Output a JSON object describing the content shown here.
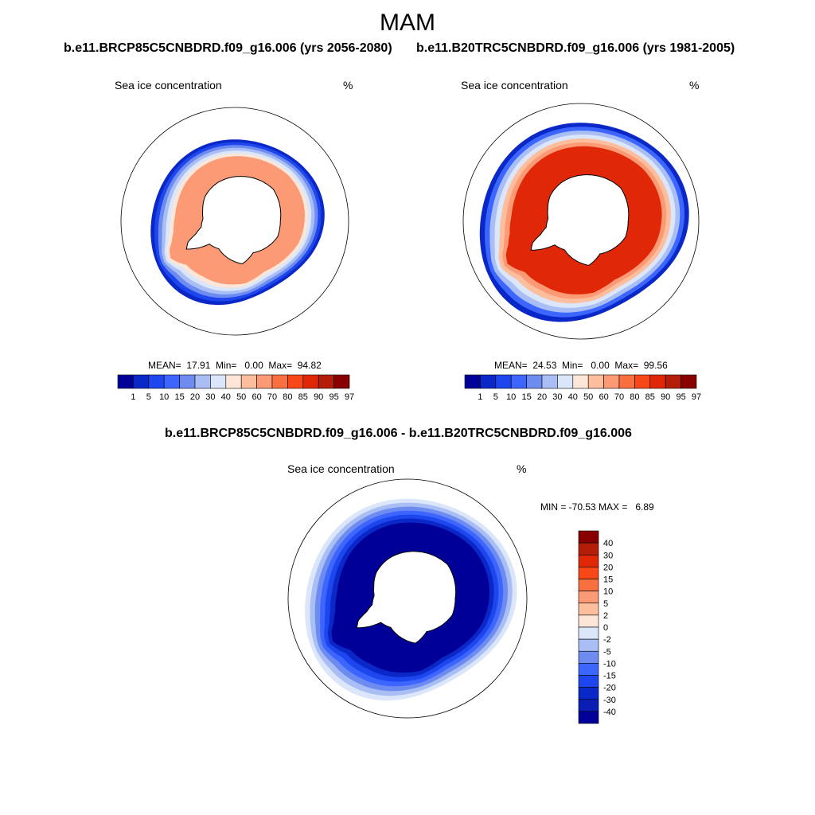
{
  "figure_title": "MAM",
  "panels": [
    {
      "run_title": "b.e11.BRCP85C5CNBDRD.f09_g16.006 (yrs 2056-2080)",
      "left_label": "Sea ice concentration",
      "right_label": "%",
      "stats": "MEAN=  17.91  Min=   0.00  Max=  94.82"
    },
    {
      "run_title": "b.e11.B20TRC5CNBDRD.f09_g16.006 (yrs 1981-2005)",
      "left_label": "Sea ice concentration",
      "right_label": "%",
      "stats": "MEAN=  24.53  Min=   0.00  Max=  99.56"
    }
  ],
  "diff_panel": {
    "title": "b.e11.BRCP85C5CNBDRD.f09_g16.006 - b.e11.B20TRC5CNBDRD.f09_g16.006",
    "left_label": "Sea ice concentration",
    "right_label": "%",
    "minmax": "MIN = -70.53 MAX =   6.89"
  },
  "colors": {
    "conc": [
      "#000099",
      "#0a28c8",
      "#1e46ee",
      "#3c66ff",
      "#6e8cf0",
      "#a8bef5",
      "#dbe6fa",
      "#fde6d8",
      "#fcbe9c",
      "#fc9a76",
      "#f87040",
      "#f84818",
      "#e02808",
      "#b41e08",
      "#880000"
    ],
    "diff": [
      "#880000",
      "#b41e08",
      "#e02808",
      "#f84818",
      "#f87040",
      "#fc9a76",
      "#fcbe9c",
      "#fde6d8",
      "#dbe6fa",
      "#a8bef5",
      "#6e8cf0",
      "#3c66ff",
      "#1e46ee",
      "#0a28c8",
      "#0a1eb4",
      "#000099"
    ]
  },
  "chart_data": [
    {
      "type": "heatmap",
      "projection": "south polar stereographic",
      "title": "b.e11.BRCP85C5CNBDRD.f09_g16.006 (yrs 2056-2080)",
      "variable": "Sea ice concentration",
      "units": "%",
      "mean": 17.91,
      "min": 0.0,
      "max": 94.82,
      "colorbar_levels": [
        1,
        5,
        10,
        15,
        20,
        30,
        40,
        50,
        60,
        70,
        80,
        85,
        90,
        95,
        97
      ],
      "colorbar_labels": [
        "1",
        "5",
        "10",
        "15",
        "20",
        "30",
        "40",
        "50",
        "60",
        "70",
        "80",
        "85",
        "90",
        "95",
        "97"
      ],
      "ice_extent_scale": 0.86,
      "interior_value": 60
    },
    {
      "type": "heatmap",
      "projection": "south polar stereographic",
      "title": "b.e11.B20TRC5CNBDRD.f09_g16.006 (yrs 1981-2005)",
      "variable": "Sea ice concentration",
      "units": "%",
      "mean": 24.53,
      "min": 0.0,
      "max": 99.56,
      "colorbar_levels": [
        1,
        5,
        10,
        15,
        20,
        30,
        40,
        50,
        60,
        70,
        80,
        85,
        90,
        95,
        97
      ],
      "colorbar_labels": [
        "1",
        "5",
        "10",
        "15",
        "20",
        "30",
        "40",
        "50",
        "60",
        "70",
        "80",
        "85",
        "90",
        "95",
        "97"
      ],
      "ice_extent_scale": 1.0,
      "interior_value": 85
    },
    {
      "type": "heatmap",
      "projection": "south polar stereographic",
      "title": "b.e11.BRCP85C5CNBDRD.f09_g16.006 - b.e11.B20TRC5CNBDRD.f09_g16.006",
      "variable": "Sea ice concentration",
      "units": "%",
      "min": -70.53,
      "max": 6.89,
      "colorbar_levels": [
        40,
        30,
        20,
        15,
        10,
        5,
        2,
        0,
        -2,
        -5,
        -10,
        -15,
        -20,
        -30,
        -40
      ],
      "colorbar_labels": [
        "40",
        "30",
        "20",
        "15",
        "10",
        "5",
        "2",
        "0",
        "-2",
        "-5",
        "-10",
        "-15",
        "-20",
        "-30",
        "-40"
      ],
      "ice_extent_scale": 1.0,
      "interior_value": -40
    }
  ]
}
